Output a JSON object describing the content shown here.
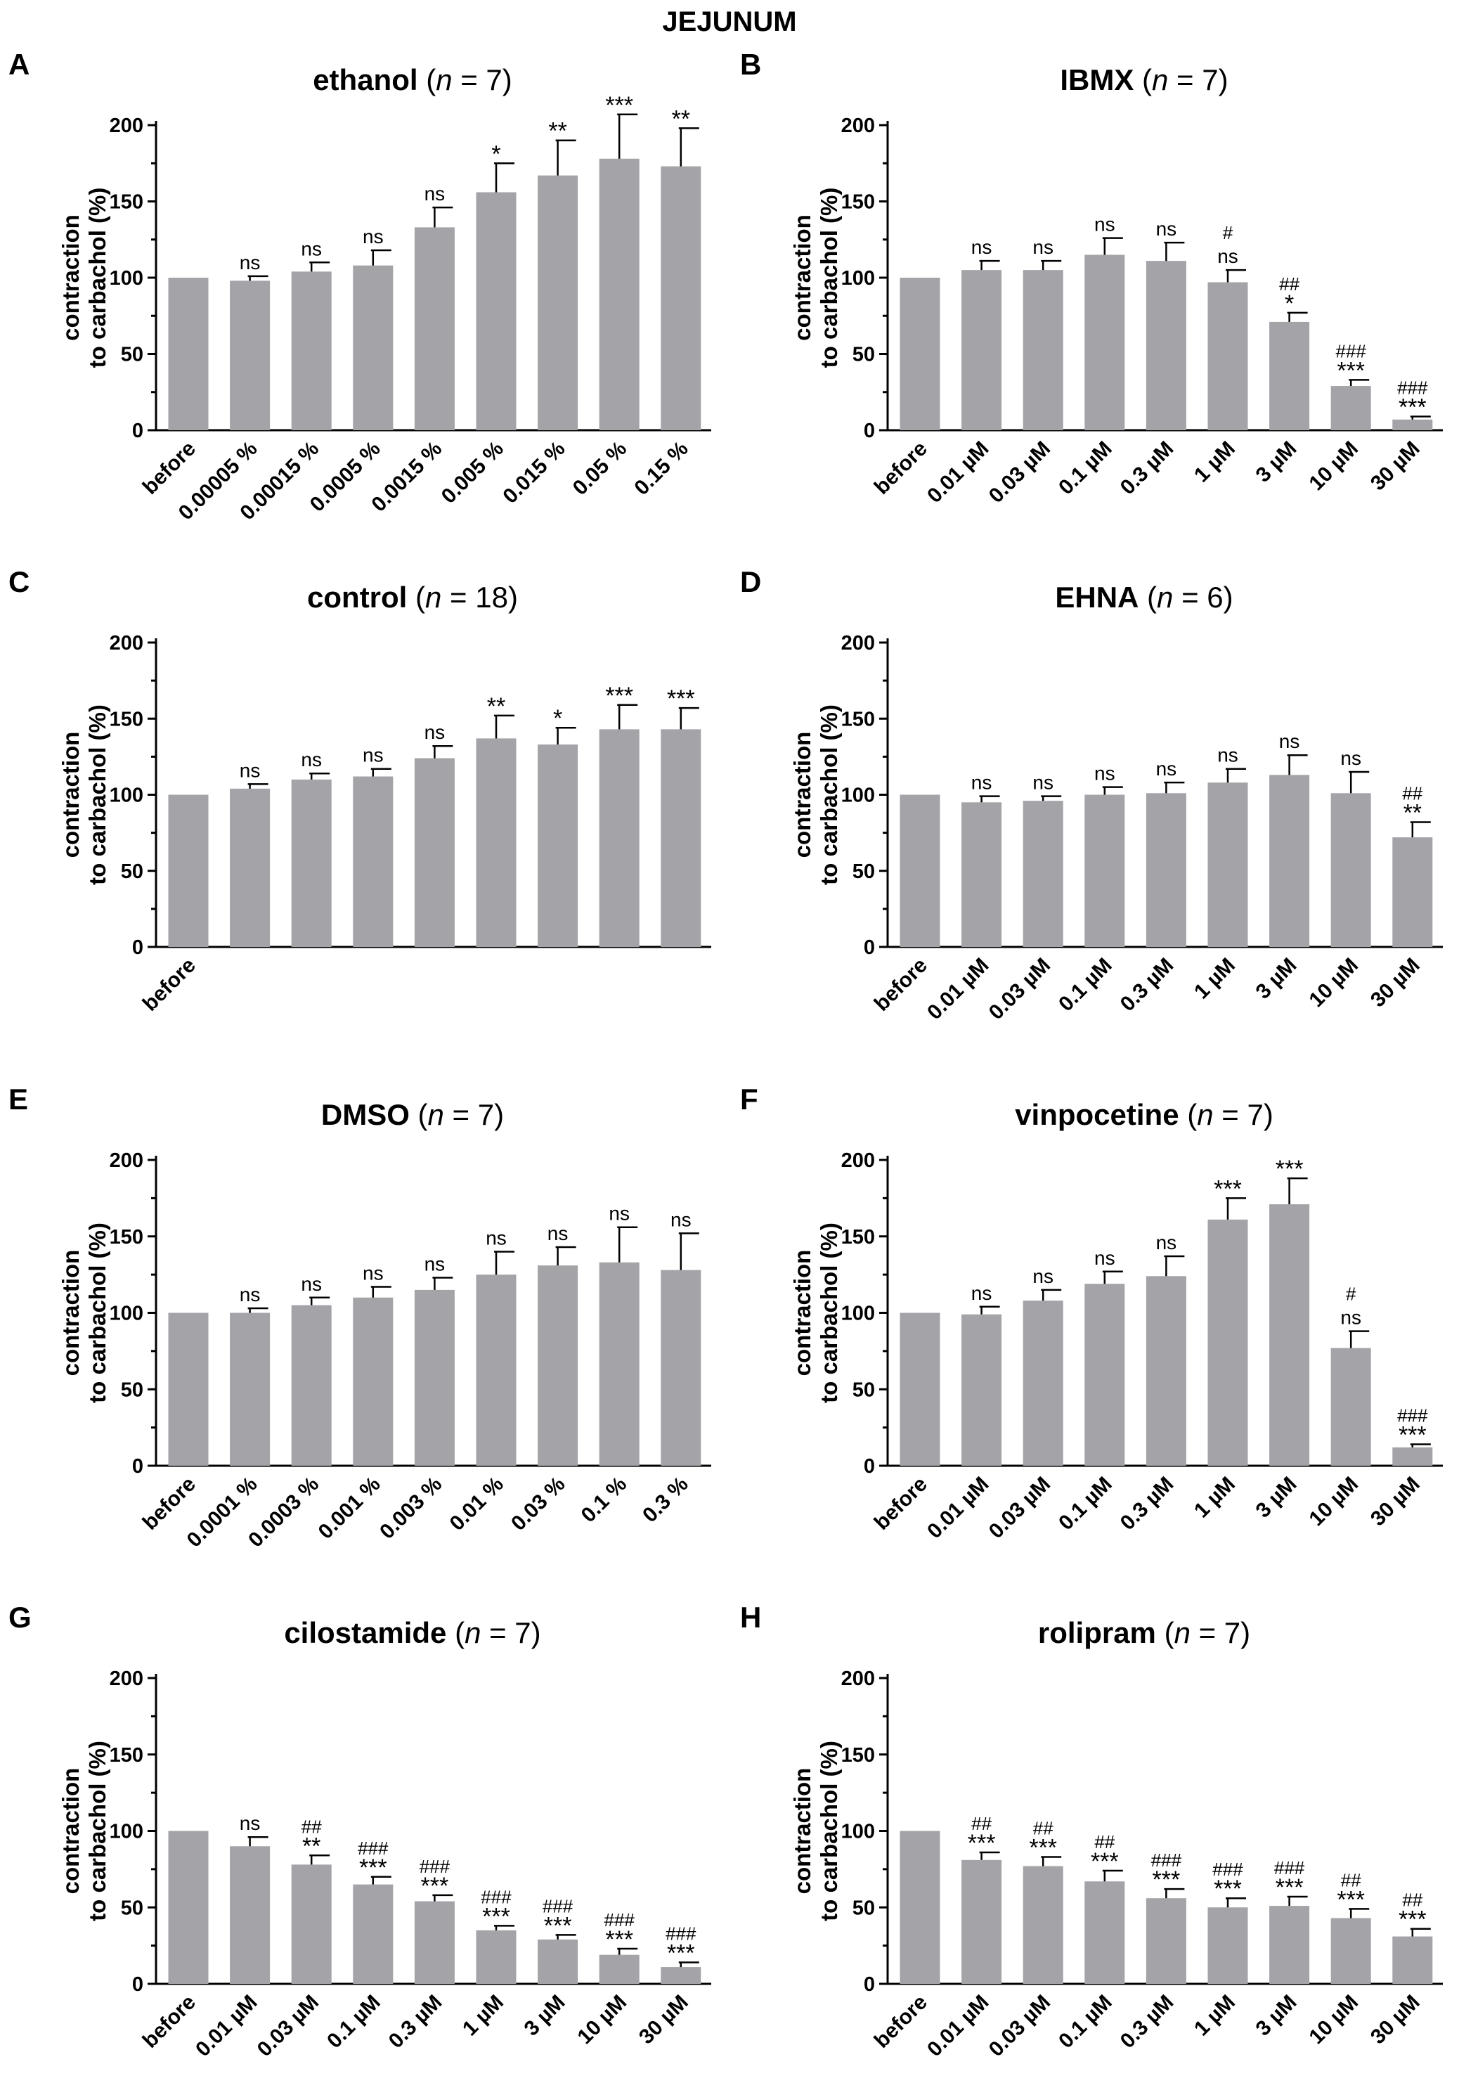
{
  "figure_title": "JEJUNUM",
  "chart_data": [
    {
      "type": "bar",
      "letter": "A",
      "title": {
        "name": "ethanol",
        "n_label": "n",
        "n_value": " = 7",
        "open": " (",
        "close": ")"
      },
      "ylabel": [
        "contraction",
        "to carbachol (%)"
      ],
      "ylim": [
        0,
        200
      ],
      "yticks": [
        0,
        50,
        100,
        150,
        200
      ],
      "categories": [
        "before",
        "0.00005 %",
        "0.00015 %",
        "0.0005 %",
        "0.0015 %",
        "0.005 %",
        "0.015 %",
        "0.05 %",
        "0.15 %"
      ],
      "values": [
        100,
        98,
        104,
        108,
        133,
        156,
        167,
        178,
        173
      ],
      "errors": [
        0,
        3,
        6,
        10,
        13,
        19,
        23,
        29,
        25
      ],
      "annotations": [
        [],
        [
          "ns"
        ],
        [
          "ns"
        ],
        [
          "ns"
        ],
        [
          "ns"
        ],
        [
          "*"
        ],
        [
          "**"
        ],
        [
          "***"
        ],
        [
          "**"
        ]
      ]
    },
    {
      "type": "bar",
      "letter": "B",
      "title": {
        "name": "IBMX",
        "n_label": "n",
        "n_value": " = 7",
        "open": " (",
        "close": ")"
      },
      "ylabel": [
        "contraction",
        "to carbachol (%)"
      ],
      "ylim": [
        0,
        200
      ],
      "yticks": [
        0,
        50,
        100,
        150,
        200
      ],
      "categories": [
        "before",
        "0.01 µM",
        "0.03 µM",
        "0.1 µM",
        "0.3 µM",
        "1 µM",
        "3 µM",
        "10 µM",
        "30 µM"
      ],
      "values": [
        100,
        105,
        105,
        115,
        111,
        97,
        71,
        29,
        7
      ],
      "errors": [
        0,
        6,
        6,
        11,
        12,
        8,
        6,
        4,
        2
      ],
      "annotations": [
        [],
        [
          "ns"
        ],
        [
          "ns"
        ],
        [
          "ns"
        ],
        [
          "ns"
        ],
        [
          "#",
          "ns"
        ],
        [
          "##",
          "*"
        ],
        [
          "###",
          "***"
        ],
        [
          "###",
          "***"
        ]
      ]
    },
    {
      "type": "bar",
      "letter": "C",
      "title": {
        "name": "control",
        "n_label": "n",
        "n_value": " = 18",
        "open": " (",
        "close": ")"
      },
      "ylabel": [
        "contraction",
        "to carbachol (%)"
      ],
      "ylim": [
        0,
        200
      ],
      "yticks": [
        0,
        50,
        100,
        150,
        200
      ],
      "categories": [
        "before",
        "",
        "",
        "",
        "",
        "",
        "",
        "",
        ""
      ],
      "values": [
        100,
        104,
        110,
        112,
        124,
        137,
        133,
        143,
        143
      ],
      "errors": [
        0,
        3,
        4,
        5,
        8,
        15,
        11,
        16,
        14
      ],
      "annotations": [
        [],
        [
          "ns"
        ],
        [
          "ns"
        ],
        [
          "ns"
        ],
        [
          "ns"
        ],
        [
          "**"
        ],
        [
          "*"
        ],
        [
          "***"
        ],
        [
          "***"
        ]
      ]
    },
    {
      "type": "bar",
      "letter": "D",
      "title": {
        "name": "EHNA",
        "n_label": "n",
        "n_value": " = 6",
        "open": " (",
        "close": ")"
      },
      "ylabel": [
        "contraction",
        "to carbachol (%)"
      ],
      "ylim": [
        0,
        200
      ],
      "yticks": [
        0,
        50,
        100,
        150,
        200
      ],
      "categories": [
        "before",
        "0.01 µM",
        "0.03 µM",
        "0.1 µM",
        "0.3 µM",
        "1 µM",
        "3 µM",
        "10 µM",
        "30 µM"
      ],
      "values": [
        100,
        95,
        96,
        100,
        101,
        108,
        113,
        101,
        72
      ],
      "errors": [
        0,
        4,
        3,
        5,
        7,
        9,
        13,
        14,
        10
      ],
      "annotations": [
        [],
        [
          "ns"
        ],
        [
          "ns"
        ],
        [
          "ns"
        ],
        [
          "ns"
        ],
        [
          "ns"
        ],
        [
          "ns"
        ],
        [
          "ns"
        ],
        [
          "##",
          "**"
        ]
      ]
    },
    {
      "type": "bar",
      "letter": "E",
      "title": {
        "name": "DMSO",
        "n_label": "n",
        "n_value": " = 7",
        "open": " (",
        "close": ")"
      },
      "ylabel": [
        "contraction",
        "to carbachol (%)"
      ],
      "ylim": [
        0,
        200
      ],
      "yticks": [
        0,
        50,
        100,
        150,
        200
      ],
      "categories": [
        "before",
        "0.0001 %",
        "0.0003 %",
        "0.001 %",
        "0.003 %",
        "0.01 %",
        "0.03 %",
        "0.1 %",
        "0.3 %"
      ],
      "values": [
        100,
        100,
        105,
        110,
        115,
        125,
        131,
        133,
        128
      ],
      "errors": [
        0,
        3,
        5,
        7,
        8,
        15,
        12,
        23,
        24
      ],
      "annotations": [
        [],
        [
          "ns"
        ],
        [
          "ns"
        ],
        [
          "ns"
        ],
        [
          "ns"
        ],
        [
          "ns"
        ],
        [
          "ns"
        ],
        [
          "ns"
        ],
        [
          "ns"
        ]
      ]
    },
    {
      "type": "bar",
      "letter": "F",
      "title": {
        "name": "vinpocetine",
        "n_label": "n",
        "n_value": " = 7",
        "open": " (",
        "close": ")"
      },
      "ylabel": [
        "contraction",
        "to carbachol (%)"
      ],
      "ylim": [
        0,
        200
      ],
      "yticks": [
        0,
        50,
        100,
        150,
        200
      ],
      "categories": [
        "before",
        "0.01 µM",
        "0.03 µM",
        "0.1 µM",
        "0.3 µM",
        "1 µM",
        "3 µM",
        "10 µM",
        "30 µM"
      ],
      "values": [
        100,
        99,
        108,
        119,
        124,
        161,
        171,
        77,
        12
      ],
      "errors": [
        0,
        5,
        7,
        8,
        13,
        14,
        17,
        11,
        2
      ],
      "annotations": [
        [],
        [
          "ns"
        ],
        [
          "ns"
        ],
        [
          "ns"
        ],
        [
          "ns"
        ],
        [
          "***"
        ],
        [
          "***"
        ],
        [
          "#",
          "ns"
        ],
        [
          "###",
          "***"
        ]
      ]
    },
    {
      "type": "bar",
      "letter": "G",
      "title": {
        "name": "cilostamide",
        "n_label": "n",
        "n_value": " = 7",
        "open": " (",
        "close": ")"
      },
      "ylabel": [
        "contraction",
        "to carbachol (%)"
      ],
      "ylim": [
        0,
        200
      ],
      "yticks": [
        0,
        50,
        100,
        150,
        200
      ],
      "categories": [
        "before",
        "0.01 µM",
        "0.03 µM",
        "0.1 µM",
        "0.3 µM",
        "1 µM",
        "3 µM",
        "10 µM",
        "30 µM"
      ],
      "values": [
        100,
        90,
        78,
        65,
        54,
        35,
        29,
        19,
        11
      ],
      "errors": [
        0,
        6,
        6,
        5,
        4,
        3,
        3,
        4,
        3
      ],
      "annotations": [
        [],
        [
          "ns"
        ],
        [
          "##",
          "**"
        ],
        [
          "###",
          "***"
        ],
        [
          "###",
          "***"
        ],
        [
          "###",
          "***"
        ],
        [
          "###",
          "***"
        ],
        [
          "###",
          "***"
        ],
        [
          "###",
          "***"
        ]
      ]
    },
    {
      "type": "bar",
      "letter": "H",
      "title": {
        "name": "rolipram",
        "n_label": "n",
        "n_value": " = 7",
        "open": " (",
        "close": ")"
      },
      "ylabel": [
        "contraction",
        "to carbachol (%)"
      ],
      "ylim": [
        0,
        200
      ],
      "yticks": [
        0,
        50,
        100,
        150,
        200
      ],
      "categories": [
        "before",
        "0.01 µM",
        "0.03 µM",
        "0.1 µM",
        "0.3 µM",
        "1 µM",
        "3 µM",
        "10 µM",
        "30 µM"
      ],
      "values": [
        100,
        81,
        77,
        67,
        56,
        50,
        51,
        43,
        31
      ],
      "errors": [
        0,
        5,
        6,
        7,
        6,
        6,
        6,
        6,
        5
      ],
      "annotations": [
        [],
        [
          "##",
          "***"
        ],
        [
          "##",
          "***"
        ],
        [
          "##",
          "***"
        ],
        [
          "###",
          "***"
        ],
        [
          "###",
          "***"
        ],
        [
          "###",
          "***"
        ],
        [
          "##",
          "***"
        ],
        [
          "##",
          "***"
        ]
      ]
    }
  ]
}
